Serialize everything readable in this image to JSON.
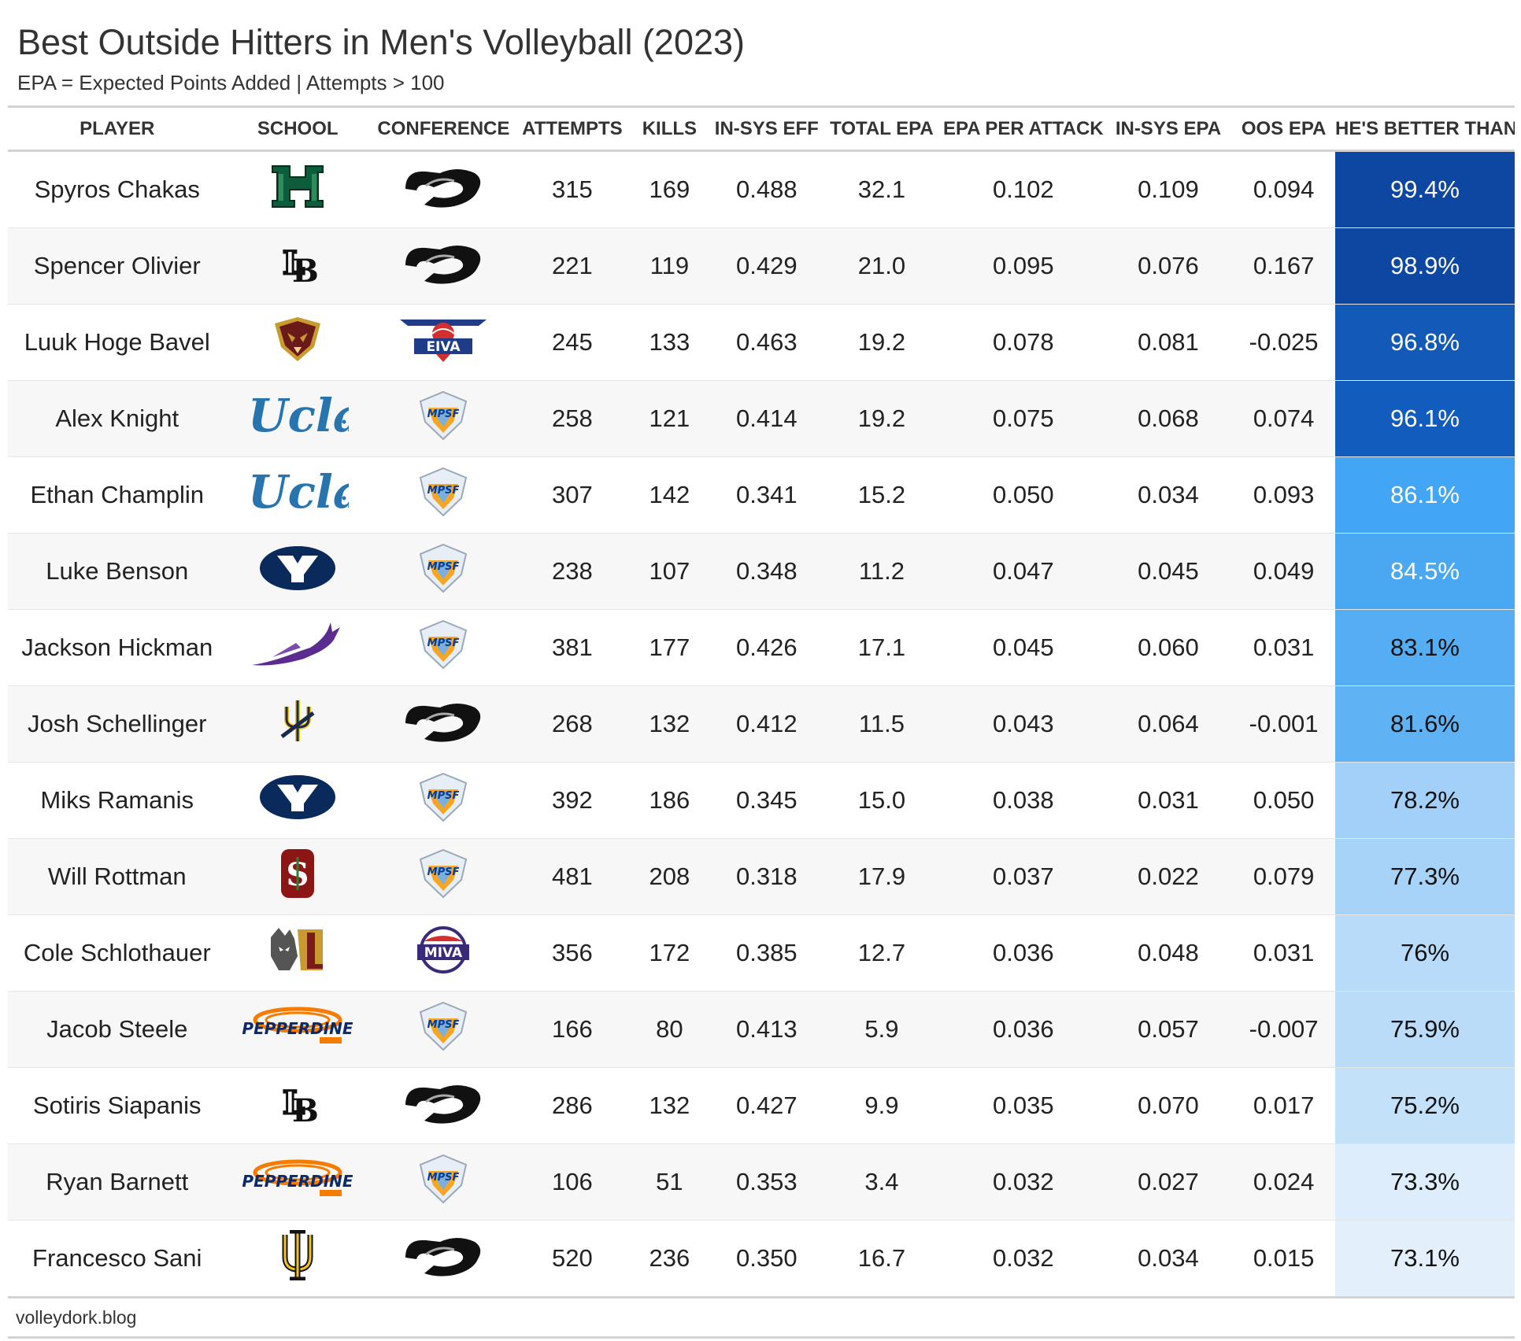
{
  "title": "Best Outside Hitters in Men's Volleyball (2023)",
  "subtitle": "EPA = Expected Points Added | Attempts > 100",
  "source": "volleydork.blog",
  "columns": [
    "PLAYER",
    "SCHOOL",
    "CONFERENCE",
    "ATTEMPTS",
    "KILLS",
    "IN-SYS EFF",
    "TOTAL EPA",
    "EPA PER ATTACK",
    "IN-SYS EPA",
    "OOS EPA",
    "HE'S BETTER THAN..."
  ],
  "percentile_colors": {
    "high": "#0d47a1",
    "mid_high": "#1565c0",
    "mid": "#42a5f5",
    "low_mid": "#90caf9",
    "low": "#bbdefb",
    "lowest": "#e3f2fd"
  },
  "chart_data": {
    "type": "table",
    "title": "Best Outside Hitters in Men's Volleyball (2023)",
    "subtitle": "EPA = Expected Points Added | Attempts > 100",
    "rows": [
      {
        "player": "Spyros Chakas",
        "school_logo": "hawaii-h-logo",
        "conference_logo": "big-west-logo",
        "attempts": "315",
        "kills": "169",
        "in_sys_eff": "0.488",
        "total_epa": "32.1",
        "epa_per_attack": "0.102",
        "in_sys_epa": "0.109",
        "oos_epa": "0.094",
        "better_than": "99.4%",
        "better_than_value": 99.4,
        "fill": "#0d47a1",
        "text": "#ffffff"
      },
      {
        "player": "Spencer Olivier",
        "school_logo": "long-beach-state-lb-logo",
        "conference_logo": "big-west-logo",
        "attempts": "221",
        "kills": "119",
        "in_sys_eff": "0.429",
        "total_epa": "21.0",
        "epa_per_attack": "0.095",
        "in_sys_epa": "0.076",
        "oos_epa": "0.167",
        "better_than": "98.9%",
        "better_than_value": 98.9,
        "fill": "#0d47a1",
        "text": "#ffffff"
      },
      {
        "player": "Luuk Hoge Bavel",
        "school_logo": "loyola-chicago-falcon-logo",
        "conference_logo": "eiva-logo",
        "attempts": "245",
        "kills": "133",
        "in_sys_eff": "0.463",
        "total_epa": "19.2",
        "epa_per_attack": "0.078",
        "in_sys_epa": "0.081",
        "oos_epa": "-0.025",
        "better_than": "96.8%",
        "better_than_value": 96.8,
        "fill": "#1259b8",
        "text": "#ffffff"
      },
      {
        "player": "Alex Knight",
        "school_logo": "ucla-logo",
        "conference_logo": "mpsf-logo",
        "attempts": "258",
        "kills": "121",
        "in_sys_eff": "0.414",
        "total_epa": "19.2",
        "epa_per_attack": "0.075",
        "in_sys_epa": "0.068",
        "oos_epa": "0.074",
        "better_than": "96.1%",
        "better_than_value": 96.1,
        "fill": "#125cbd",
        "text": "#ffffff"
      },
      {
        "player": "Ethan Champlin",
        "school_logo": "ucla-logo",
        "conference_logo": "mpsf-logo",
        "attempts": "307",
        "kills": "142",
        "in_sys_eff": "0.341",
        "total_epa": "15.2",
        "epa_per_attack": "0.050",
        "in_sys_epa": "0.034",
        "oos_epa": "0.093",
        "better_than": "86.1%",
        "better_than_value": 86.1,
        "fill": "#42a5f5",
        "text": "#ffffff"
      },
      {
        "player": "Luke Benson",
        "school_logo": "byu-logo",
        "conference_logo": "mpsf-logo",
        "attempts": "238",
        "kills": "107",
        "in_sys_eff": "0.348",
        "total_epa": "11.2",
        "epa_per_attack": "0.047",
        "in_sys_epa": "0.045",
        "oos_epa": "0.049",
        "better_than": "84.5%",
        "better_than_value": 84.5,
        "fill": "#4aa8f3",
        "text": "#ffffff"
      },
      {
        "player": "Jackson Hickman",
        "school_logo": "grand-canyon-antelope-logo",
        "conference_logo": "mpsf-logo",
        "attempts": "381",
        "kills": "177",
        "in_sys_eff": "0.426",
        "total_epa": "17.1",
        "epa_per_attack": "0.045",
        "in_sys_epa": "0.060",
        "oos_epa": "0.031",
        "better_than": "83.1%",
        "better_than_value": 83.1,
        "fill": "#55adf3",
        "text": "#111111"
      },
      {
        "player": "Josh Schellinger",
        "school_logo": "uc-san-diego-trident-logo",
        "conference_logo": "big-west-logo",
        "attempts": "268",
        "kills": "132",
        "in_sys_eff": "0.412",
        "total_epa": "11.5",
        "epa_per_attack": "0.043",
        "in_sys_epa": "0.064",
        "oos_epa": "-0.001",
        "better_than": "81.6%",
        "better_than_value": 81.6,
        "fill": "#5fb2f4",
        "text": "#111111"
      },
      {
        "player": "Miks Ramanis",
        "school_logo": "byu-logo",
        "conference_logo": "mpsf-logo",
        "attempts": "392",
        "kills": "186",
        "in_sys_eff": "0.345",
        "total_epa": "15.0",
        "epa_per_attack": "0.038",
        "in_sys_epa": "0.031",
        "oos_epa": "0.050",
        "better_than": "78.2%",
        "better_than_value": 78.2,
        "fill": "#a2d0f8",
        "text": "#111111"
      },
      {
        "player": "Will Rottman",
        "school_logo": "stanford-s-logo",
        "conference_logo": "mpsf-logo",
        "attempts": "481",
        "kills": "208",
        "in_sys_eff": "0.318",
        "total_epa": "17.9",
        "epa_per_attack": "0.037",
        "in_sys_epa": "0.022",
        "oos_epa": "0.079",
        "better_than": "77.3%",
        "better_than_value": 77.3,
        "fill": "#a8d3f8",
        "text": "#111111"
      },
      {
        "player": "Cole Schlothauer",
        "school_logo": "lewis-flyers-logo",
        "conference_logo": "miva-logo",
        "attempts": "356",
        "kills": "172",
        "in_sys_eff": "0.385",
        "total_epa": "12.7",
        "epa_per_attack": "0.036",
        "in_sys_epa": "0.048",
        "oos_epa": "0.031",
        "better_than": "76%",
        "better_than_value": 76,
        "fill": "#b7dbf9",
        "text": "#111111"
      },
      {
        "player": "Jacob Steele",
        "school_logo": "pepperdine-logo",
        "conference_logo": "mpsf-logo",
        "attempts": "166",
        "kills": "80",
        "in_sys_eff": "0.413",
        "total_epa": "5.9",
        "epa_per_attack": "0.036",
        "in_sys_epa": "0.057",
        "oos_epa": "-0.007",
        "better_than": "75.9%",
        "better_than_value": 75.9,
        "fill": "#badcf9",
        "text": "#111111"
      },
      {
        "player": "Sotiris Siapanis",
        "school_logo": "long-beach-state-lb-logo",
        "conference_logo": "big-west-logo",
        "attempts": "286",
        "kills": "132",
        "in_sys_eff": "0.427",
        "total_epa": "9.9",
        "epa_per_attack": "0.035",
        "in_sys_epa": "0.070",
        "oos_epa": "0.017",
        "better_than": "75.2%",
        "better_than_value": 75.2,
        "fill": "#c4e1fa",
        "text": "#111111"
      },
      {
        "player": "Ryan Barnett",
        "school_logo": "pepperdine-logo",
        "conference_logo": "mpsf-logo",
        "attempts": "106",
        "kills": "51",
        "in_sys_eff": "0.353",
        "total_epa": "3.4",
        "epa_per_attack": "0.032",
        "in_sys_epa": "0.027",
        "oos_epa": "0.024",
        "better_than": "73.3%",
        "better_than_value": 73.3,
        "fill": "#deedfb",
        "text": "#111111"
      },
      {
        "player": "Francesco Sani",
        "school_logo": "uc-irvine-logo",
        "conference_logo": "big-west-logo",
        "attempts": "520",
        "kills": "236",
        "in_sys_eff": "0.350",
        "total_epa": "16.7",
        "epa_per_attack": "0.032",
        "in_sys_epa": "0.034",
        "oos_epa": "0.015",
        "better_than": "73.1%",
        "better_than_value": 73.1,
        "fill": "#e3f0fc",
        "text": "#111111"
      }
    ]
  }
}
